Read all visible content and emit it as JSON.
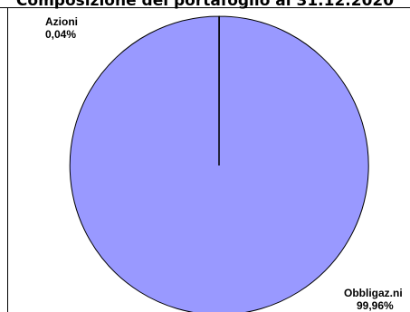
{
  "chart_data": {
    "type": "pie",
    "title": "Composizione del portafoglio al 31.12.2020",
    "slices": [
      {
        "label": "Azioni",
        "value_text": "0,04%",
        "value": 0.04
      },
      {
        "label": "Obbligaz.ni",
        "value_text": "99,96%",
        "value": 99.96
      }
    ],
    "colors": {
      "main_slice": "#9999ff",
      "edge": "#000000"
    },
    "legend": "none"
  }
}
